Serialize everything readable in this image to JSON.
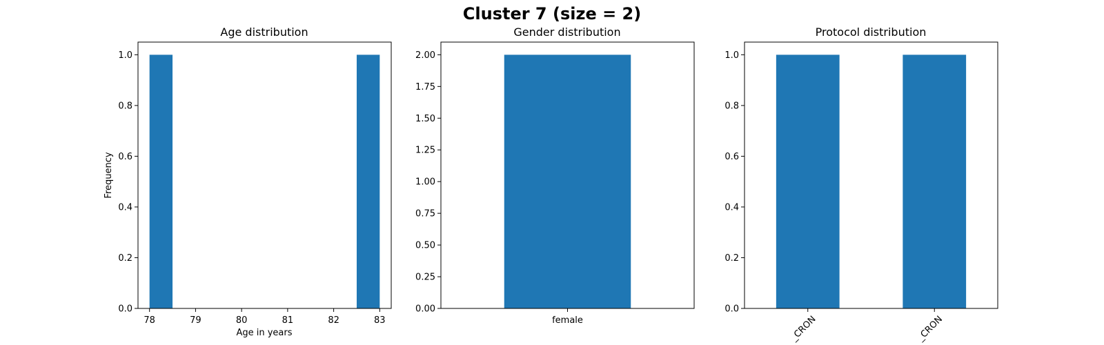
{
  "figure_title": "Cluster 7 (size = 2)",
  "colors": {
    "bar": "#1f77b4"
  },
  "chart_data": [
    {
      "type": "bar",
      "title": "Age distribution",
      "xlabel": "Age in years",
      "ylabel": "Frequency",
      "bins": [
        {
          "x0": 78.0,
          "x1": 78.5,
          "value": 1
        },
        {
          "x0": 82.5,
          "x1": 83.0,
          "value": 1
        }
      ],
      "xlim": [
        77.75,
        83.25
      ],
      "ylim": [
        0,
        1.05
      ],
      "xticks": [
        "78",
        "79",
        "80",
        "81",
        "82",
        "83"
      ],
      "xtick_values": [
        78,
        79,
        80,
        81,
        82,
        83
      ],
      "yticks": [
        "0.0",
        "0.2",
        "0.4",
        "0.6",
        "0.8",
        "1.0"
      ],
      "ytick_values": [
        0,
        0.2,
        0.4,
        0.6,
        0.8,
        1.0
      ]
    },
    {
      "type": "bar",
      "title": "Gender distribution",
      "xlabel": "",
      "ylabel": "",
      "categories": [
        "female"
      ],
      "values": [
        2
      ],
      "ylim": [
        0,
        2.1
      ],
      "yticks": [
        "0.00",
        "0.25",
        "0.50",
        "0.75",
        "1.00",
        "1.25",
        "1.50",
        "1.75",
        "2.00"
      ],
      "ytick_values": [
        0,
        0.25,
        0.5,
        0.75,
        1.0,
        1.25,
        1.5,
        1.75,
        2.0
      ]
    },
    {
      "type": "bar",
      "title": "Protocol distribution",
      "xlabel": "",
      "ylabel": "",
      "categories": [
        "_CRON",
        "_CRON"
      ],
      "values": [
        1,
        1
      ],
      "ylim": [
        0,
        1.05
      ],
      "yticks": [
        "0.0",
        "0.2",
        "0.4",
        "0.6",
        "0.8",
        "1.0"
      ],
      "ytick_values": [
        0,
        0.2,
        0.4,
        0.6,
        0.8,
        1.0
      ]
    }
  ]
}
